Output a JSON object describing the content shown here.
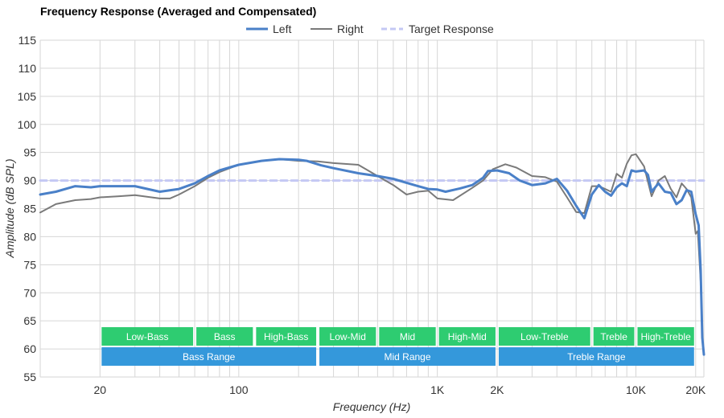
{
  "chart_data": {
    "type": "line",
    "title": "Frequency Response (Averaged and Compensated)",
    "xlabel": "Frequency (Hz)",
    "ylabel": "Amplitude (dB SPL)",
    "x_scale": "log",
    "xlim": [
      10,
      22000
    ],
    "ylim": [
      55,
      115
    ],
    "grid": true,
    "legend_position": "top-center",
    "y_ticks": [
      55,
      60,
      65,
      70,
      75,
      80,
      85,
      90,
      95,
      100,
      105,
      110,
      115
    ],
    "x_tick_labels": [
      {
        "value": 20,
        "label": "20"
      },
      {
        "value": 100,
        "label": "100"
      },
      {
        "value": 1000,
        "label": "1K"
      },
      {
        "value": 2000,
        "label": "2K"
      },
      {
        "value": 10000,
        "label": "10K"
      },
      {
        "value": 20000,
        "label": "20K"
      }
    ],
    "x_grid_values": [
      20,
      30,
      40,
      50,
      60,
      70,
      80,
      90,
      100,
      200,
      300,
      400,
      500,
      600,
      700,
      800,
      900,
      1000,
      2000,
      3000,
      4000,
      5000,
      6000,
      7000,
      8000,
      9000,
      10000,
      20000
    ],
    "series": [
      {
        "name": "Left",
        "color": "#4a80c8",
        "style": "solid",
        "points": [
          [
            10,
            87.5
          ],
          [
            12,
            88
          ],
          [
            15,
            89
          ],
          [
            18,
            88.8
          ],
          [
            20,
            89
          ],
          [
            30,
            89
          ],
          [
            40,
            88
          ],
          [
            50,
            88.5
          ],
          [
            60,
            89.5
          ],
          [
            70,
            90.8
          ],
          [
            80,
            91.8
          ],
          [
            100,
            92.8
          ],
          [
            130,
            93.5
          ],
          [
            160,
            93.8
          ],
          [
            200,
            93.7
          ],
          [
            220,
            93.5
          ],
          [
            260,
            92.7
          ],
          [
            300,
            92.2
          ],
          [
            400,
            91.3
          ],
          [
            500,
            90.8
          ],
          [
            600,
            90.3
          ],
          [
            700,
            89.6
          ],
          [
            800,
            89
          ],
          [
            900,
            88.5
          ],
          [
            1000,
            88.4
          ],
          [
            1100,
            88
          ],
          [
            1300,
            88.6
          ],
          [
            1500,
            89.2
          ],
          [
            1700,
            90.5
          ],
          [
            1800,
            91.7
          ],
          [
            2000,
            91.8
          ],
          [
            2300,
            91.3
          ],
          [
            2600,
            90
          ],
          [
            3000,
            89.2
          ],
          [
            3500,
            89.5
          ],
          [
            4000,
            90.3
          ],
          [
            4500,
            88.2
          ],
          [
            5000,
            85.5
          ],
          [
            5500,
            83.3
          ],
          [
            6000,
            87.5
          ],
          [
            6500,
            89.2
          ],
          [
            7000,
            88
          ],
          [
            7500,
            87.3
          ],
          [
            8000,
            88.8
          ],
          [
            8500,
            89.5
          ],
          [
            9000,
            89
          ],
          [
            9500,
            91.8
          ],
          [
            10000,
            91.6
          ],
          [
            11000,
            91.8
          ],
          [
            11500,
            91
          ],
          [
            12000,
            88
          ],
          [
            13000,
            89.5
          ],
          [
            14000,
            88
          ],
          [
            15000,
            87.8
          ],
          [
            16000,
            85.8
          ],
          [
            17000,
            86.5
          ],
          [
            18000,
            88.3
          ],
          [
            19000,
            88
          ],
          [
            20000,
            84
          ],
          [
            20700,
            82
          ],
          [
            21200,
            74
          ],
          [
            21600,
            62
          ],
          [
            22000,
            59
          ]
        ]
      },
      {
        "name": "Right",
        "color": "#7a7a7a",
        "style": "solid",
        "points": [
          [
            10,
            84.3
          ],
          [
            12,
            85.8
          ],
          [
            15,
            86.5
          ],
          [
            18,
            86.7
          ],
          [
            20,
            87
          ],
          [
            25,
            87.2
          ],
          [
            30,
            87.4
          ],
          [
            40,
            86.8
          ],
          [
            45,
            86.8
          ],
          [
            50,
            87.5
          ],
          [
            60,
            89
          ],
          [
            70,
            90.5
          ],
          [
            80,
            91.5
          ],
          [
            100,
            92.8
          ],
          [
            130,
            93.5
          ],
          [
            160,
            93.8
          ],
          [
            200,
            93.5
          ],
          [
            250,
            93.4
          ],
          [
            300,
            93.1
          ],
          [
            400,
            92.8
          ],
          [
            500,
            90.8
          ],
          [
            600,
            89.2
          ],
          [
            700,
            87.5
          ],
          [
            800,
            88
          ],
          [
            900,
            88.2
          ],
          [
            1000,
            86.8
          ],
          [
            1200,
            86.5
          ],
          [
            1500,
            88.7
          ],
          [
            1700,
            90
          ],
          [
            1900,
            92
          ],
          [
            2200,
            92.9
          ],
          [
            2500,
            92.3
          ],
          [
            3000,
            90.8
          ],
          [
            3500,
            90.6
          ],
          [
            4000,
            89.8
          ],
          [
            4500,
            87
          ],
          [
            5000,
            84.4
          ],
          [
            5500,
            84.2
          ],
          [
            6000,
            89
          ],
          [
            6500,
            89
          ],
          [
            7000,
            88.5
          ],
          [
            7500,
            88
          ],
          [
            8000,
            91.2
          ],
          [
            8500,
            90.5
          ],
          [
            9000,
            93
          ],
          [
            9500,
            94.5
          ],
          [
            10000,
            94.7
          ],
          [
            11000,
            92.5
          ],
          [
            12000,
            87.2
          ],
          [
            13000,
            90
          ],
          [
            14000,
            90.8
          ],
          [
            15000,
            88.5
          ],
          [
            16000,
            87
          ],
          [
            17000,
            89.5
          ],
          [
            18000,
            88.5
          ],
          [
            19000,
            87
          ],
          [
            20000,
            80.5
          ],
          [
            20500,
            81
          ],
          [
            21200,
            72
          ],
          [
            21600,
            62
          ],
          [
            22000,
            59
          ]
        ]
      },
      {
        "name": "Target Response",
        "color": "#c4c8f4",
        "style": "dashed",
        "points": [
          [
            10,
            90
          ],
          [
            22000,
            90
          ]
        ]
      }
    ],
    "frequency_bands": [
      {
        "label": "Low-Bass",
        "from": 20,
        "to": 60,
        "row": 1
      },
      {
        "label": "Bass",
        "from": 60,
        "to": 120,
        "row": 1
      },
      {
        "label": "High-Bass",
        "from": 120,
        "to": 250,
        "row": 1
      },
      {
        "label": "Low-Mid",
        "from": 250,
        "to": 500,
        "row": 1
      },
      {
        "label": "Mid",
        "from": 500,
        "to": 1000,
        "row": 1
      },
      {
        "label": "High-Mid",
        "from": 1000,
        "to": 2000,
        "row": 1
      },
      {
        "label": "Low-Treble",
        "from": 2000,
        "to": 6000,
        "row": 1
      },
      {
        "label": "Treble",
        "from": 6000,
        "to": 10000,
        "row": 1
      },
      {
        "label": "High-Treble",
        "from": 10000,
        "to": 20000,
        "row": 1
      },
      {
        "label": "Bass Range",
        "from": 20,
        "to": 250,
        "row": 2
      },
      {
        "label": "Mid Range",
        "from": 250,
        "to": 2000,
        "row": 2
      },
      {
        "label": "Treble Range",
        "from": 2000,
        "to": 20000,
        "row": 2
      }
    ],
    "band_colors": {
      "row1": "#2ecc71",
      "row2": "#3498db"
    }
  }
}
